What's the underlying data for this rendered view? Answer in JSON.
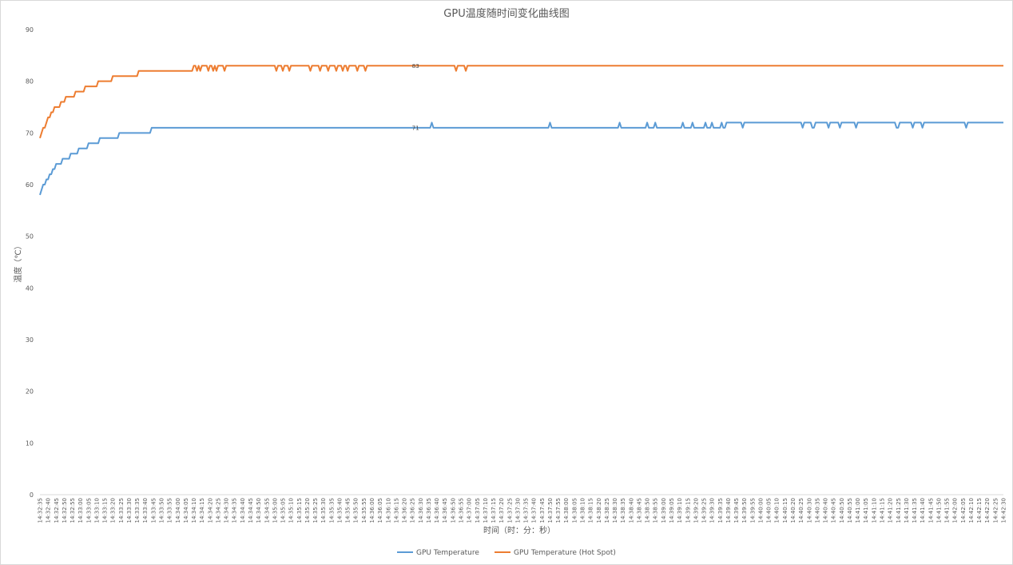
{
  "chart_data": {
    "type": "line",
    "title": "GPU温度随时间变化曲线图",
    "xlabel": "时间（时：分：秒）",
    "ylabel": "温度（℃）",
    "ylim": [
      0,
      90
    ],
    "y_ticks": [
      0,
      10,
      20,
      30,
      40,
      50,
      60,
      70,
      80,
      90
    ],
    "x_range": [
      "14:32:35",
      "14:42:30"
    ],
    "x_sample_interval_seconds": 1,
    "grid": false,
    "legend": "bottom",
    "x_ticks": [
      "14:32:35",
      "14:32:40",
      "14:32:45",
      "14:32:50",
      "14:32:55",
      "14:33:00",
      "14:33:05",
      "14:33:10",
      "14:33:15",
      "14:33:20",
      "14:33:25",
      "14:33:30",
      "14:33:35",
      "14:33:40",
      "14:33:45",
      "14:33:50",
      "14:33:55",
      "14:34:00",
      "14:34:05",
      "14:34:10",
      "14:34:15",
      "14:34:20",
      "14:34:25",
      "14:34:30",
      "14:34:35",
      "14:34:40",
      "14:34:45",
      "14:34:50",
      "14:34:55",
      "14:35:00",
      "14:35:05",
      "14:35:10",
      "14:35:15",
      "14:35:20",
      "14:35:25",
      "14:35:30",
      "14:35:35",
      "14:35:40",
      "14:35:45",
      "14:35:50",
      "14:35:55",
      "14:36:00",
      "14:36:05",
      "14:36:10",
      "14:36:15",
      "14:36:20",
      "14:36:25",
      "14:36:30",
      "14:36:35",
      "14:36:40",
      "14:36:45",
      "14:36:50",
      "14:36:55",
      "14:37:00",
      "14:37:05",
      "14:37:10",
      "14:37:15",
      "14:37:20",
      "14:37:25",
      "14:37:30",
      "14:37:35",
      "14:37:40",
      "14:37:45",
      "14:37:50",
      "14:37:55",
      "14:38:00",
      "14:38:05",
      "14:38:10",
      "14:38:15",
      "14:38:20",
      "14:38:25",
      "14:38:30",
      "14:38:35",
      "14:38:40",
      "14:38:45",
      "14:38:50",
      "14:38:55",
      "14:39:00",
      "14:39:05",
      "14:39:10",
      "14:39:15",
      "14:39:20",
      "14:39:25",
      "14:39:30",
      "14:39:35",
      "14:39:40",
      "14:39:45",
      "14:39:50",
      "14:39:55",
      "14:40:00",
      "14:40:05",
      "14:40:10",
      "14:40:15",
      "14:40:20",
      "14:40:25",
      "14:40:30",
      "14:40:35",
      "14:40:40",
      "14:40:45",
      "14:40:50",
      "14:40:55",
      "14:41:00",
      "14:41:05",
      "14:41:10",
      "14:41:15",
      "14:41:20",
      "14:41:25",
      "14:41:30",
      "14:41:35",
      "14:41:40",
      "14:41:45",
      "14:41:50",
      "14:41:55",
      "14:42:00",
      "14:42:05",
      "14:42:10",
      "14:42:15",
      "14:42:20",
      "14:42:25",
      "14:42:30"
    ],
    "series": [
      {
        "name": "GPU Temperature",
        "color": "#5b9bd5",
        "value_changes": [
          [
            "14:32:35",
            58
          ],
          [
            "14:32:36",
            59
          ],
          [
            "14:32:37",
            60
          ],
          [
            "14:32:39",
            61
          ],
          [
            "14:32:41",
            62
          ],
          [
            "14:32:43",
            63
          ],
          [
            "14:32:45",
            64
          ],
          [
            "14:32:49",
            65
          ],
          [
            "14:32:54",
            66
          ],
          [
            "14:32:59",
            67
          ],
          [
            "14:33:05",
            68
          ],
          [
            "14:33:12",
            69
          ],
          [
            "14:33:24",
            70
          ],
          [
            "14:33:44",
            71
          ],
          [
            "14:36:37",
            72
          ],
          [
            "14:36:38",
            71
          ],
          [
            "14:37:50",
            72
          ],
          [
            "14:37:51",
            71
          ],
          [
            "14:38:33",
            72
          ],
          [
            "14:38:34",
            71
          ],
          [
            "14:38:50",
            72
          ],
          [
            "14:38:51",
            71
          ],
          [
            "14:38:55",
            72
          ],
          [
            "14:38:56",
            71
          ],
          [
            "14:39:12",
            72
          ],
          [
            "14:39:13",
            71
          ],
          [
            "14:39:18",
            72
          ],
          [
            "14:39:19",
            71
          ],
          [
            "14:39:26",
            72
          ],
          [
            "14:39:27",
            71
          ],
          [
            "14:39:30",
            72
          ],
          [
            "14:39:31",
            71
          ],
          [
            "14:39:36",
            72
          ],
          [
            "14:39:37",
            71
          ],
          [
            "14:39:39",
            72
          ],
          [
            "14:39:49",
            71
          ],
          [
            "14:39:50",
            72
          ],
          [
            "14:40:26",
            71
          ],
          [
            "14:40:27",
            72
          ],
          [
            "14:40:32",
            71
          ],
          [
            "14:40:34",
            72
          ],
          [
            "14:40:42",
            71
          ],
          [
            "14:40:43",
            72
          ],
          [
            "14:40:49",
            71
          ],
          [
            "14:40:50",
            72
          ],
          [
            "14:40:59",
            71
          ],
          [
            "14:41:00",
            72
          ],
          [
            "14:41:24",
            71
          ],
          [
            "14:41:26",
            72
          ],
          [
            "14:41:34",
            71
          ],
          [
            "14:41:35",
            72
          ],
          [
            "14:41:40",
            71
          ],
          [
            "14:41:41",
            72
          ],
          [
            "14:42:07",
            71
          ],
          [
            "14:42:08",
            72
          ]
        ],
        "data_label": {
          "time": "14:36:27",
          "text": "71"
        }
      },
      {
        "name": "GPU Temperature (Hot Spot)",
        "color": "#ed7d31",
        "value_changes": [
          [
            "14:32:35",
            69
          ],
          [
            "14:32:36",
            70
          ],
          [
            "14:32:37",
            71
          ],
          [
            "14:32:39",
            72
          ],
          [
            "14:32:40",
            73
          ],
          [
            "14:32:42",
            74
          ],
          [
            "14:32:44",
            75
          ],
          [
            "14:32:48",
            76
          ],
          [
            "14:32:51",
            77
          ],
          [
            "14:32:57",
            78
          ],
          [
            "14:33:03",
            79
          ],
          [
            "14:33:11",
            80
          ],
          [
            "14:33:20",
            81
          ],
          [
            "14:33:36",
            82
          ],
          [
            "14:34:10",
            83
          ],
          [
            "14:34:12",
            82
          ],
          [
            "14:34:13",
            83
          ],
          [
            "14:34:14",
            82
          ],
          [
            "14:34:15",
            83
          ],
          [
            "14:34:19",
            82
          ],
          [
            "14:34:20",
            83
          ],
          [
            "14:34:22",
            82
          ],
          [
            "14:34:23",
            83
          ],
          [
            "14:34:24",
            82
          ],
          [
            "14:34:25",
            83
          ],
          [
            "14:34:29",
            82
          ],
          [
            "14:34:30",
            83
          ],
          [
            "14:35:01",
            82
          ],
          [
            "14:35:02",
            83
          ],
          [
            "14:35:05",
            82
          ],
          [
            "14:35:06",
            83
          ],
          [
            "14:35:09",
            82
          ],
          [
            "14:35:10",
            83
          ],
          [
            "14:35:22",
            82
          ],
          [
            "14:35:23",
            83
          ],
          [
            "14:35:28",
            82
          ],
          [
            "14:35:29",
            83
          ],
          [
            "14:35:33",
            82
          ],
          [
            "14:35:34",
            83
          ],
          [
            "14:35:38",
            82
          ],
          [
            "14:35:39",
            83
          ],
          [
            "14:35:42",
            82
          ],
          [
            "14:35:43",
            83
          ],
          [
            "14:35:45",
            82
          ],
          [
            "14:35:46",
            83
          ],
          [
            "14:35:51",
            82
          ],
          [
            "14:35:52",
            83
          ],
          [
            "14:35:56",
            82
          ],
          [
            "14:35:57",
            83
          ],
          [
            "14:36:52",
            82
          ],
          [
            "14:36:53",
            83
          ],
          [
            "14:36:58",
            82
          ],
          [
            "14:36:59",
            83
          ]
        ],
        "data_label": {
          "time": "14:36:27",
          "text": "83"
        }
      }
    ]
  }
}
